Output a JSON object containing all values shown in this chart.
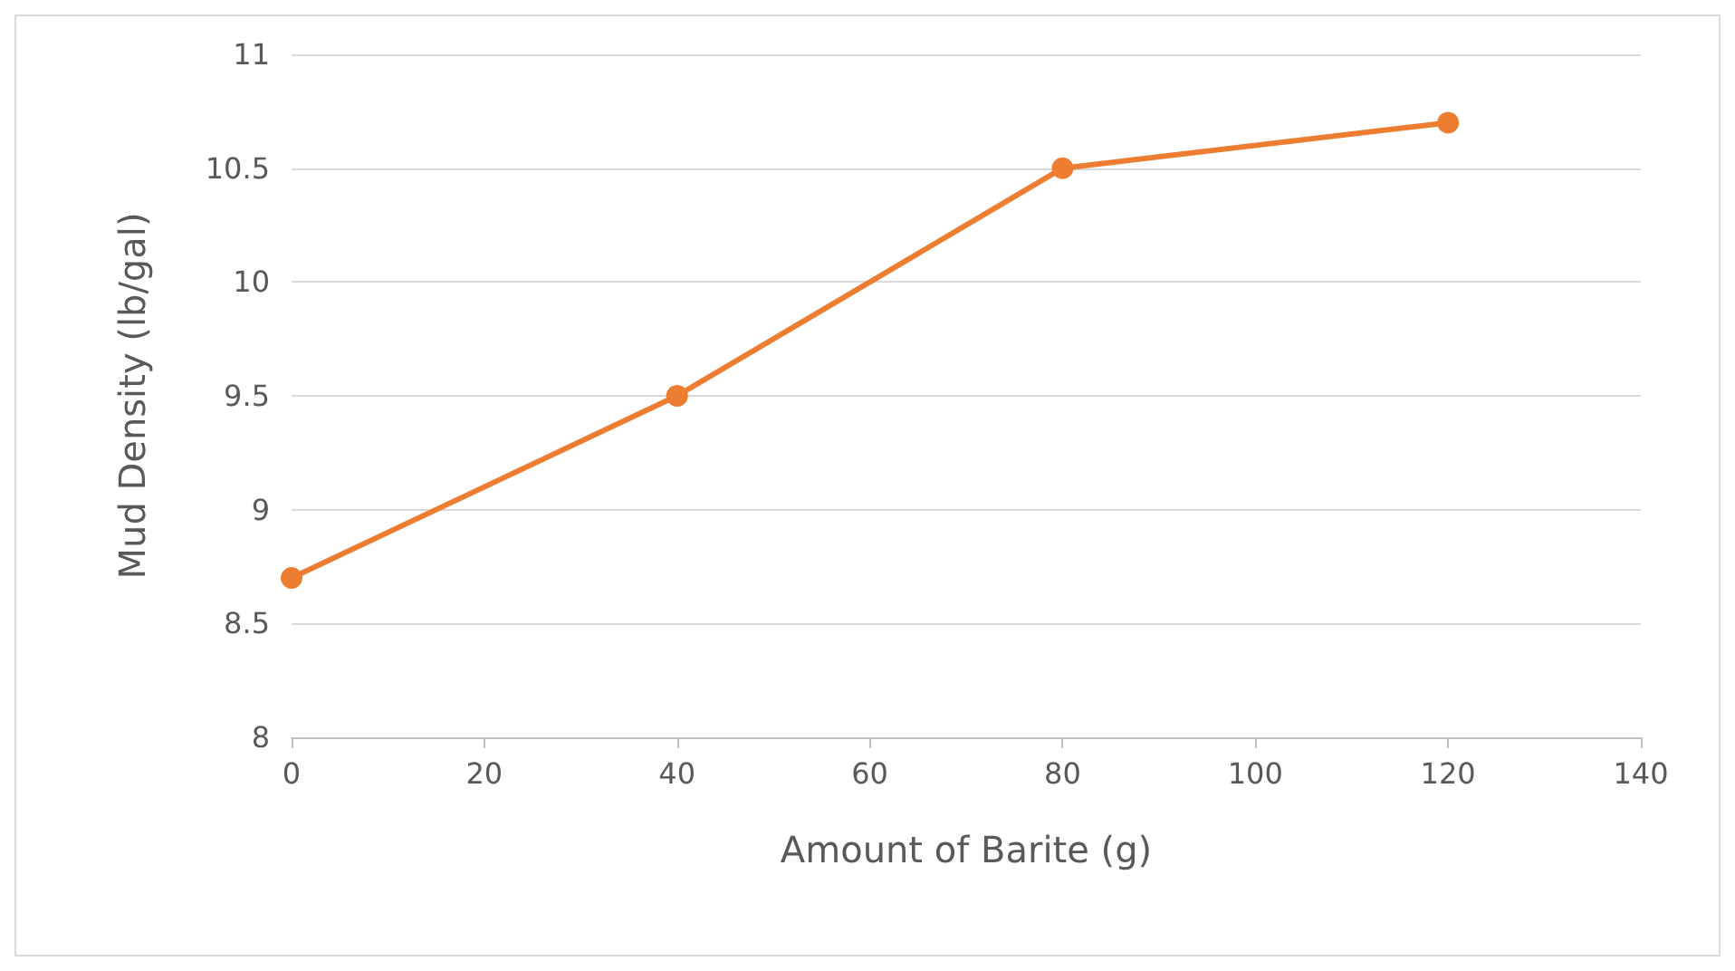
{
  "chart_data": {
    "type": "line",
    "xlabel": "Amount of Barite (g)",
    "ylabel": "Mud Density (lb/gal)",
    "x": [
      0,
      40,
      80,
      120
    ],
    "series": [
      {
        "color": "#ed7d31",
        "values": [
          8.7,
          9.5,
          10.5,
          10.7
        ]
      }
    ],
    "xlim": [
      0,
      140
    ],
    "xticks": [
      0,
      20,
      40,
      60,
      80,
      100,
      120,
      140
    ],
    "ylim": [
      8,
      11
    ],
    "yticks": [
      8,
      8.5,
      9,
      9.5,
      10,
      10.5,
      11
    ],
    "grid": "y",
    "marker": "circle",
    "line_style": "solid"
  }
}
